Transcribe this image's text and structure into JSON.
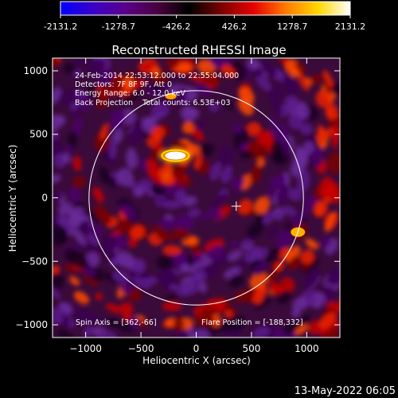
{
  "footer": {
    "date_stamp": "13-May-2022 06:05"
  },
  "colorbar": {
    "tick_labels": [
      "-2131.2",
      "-1278.7",
      "-426.2",
      "426.2",
      "1278.7",
      "2131.2"
    ],
    "min": -2131.2,
    "max": 2131.2,
    "colors": [
      "#0000ff",
      "#3a00c8",
      "#5a008a",
      "#4a0040",
      "#000000",
      "#7a0000",
      "#e60000",
      "#ff7a00",
      "#ffd700",
      "#ffffff"
    ]
  },
  "chart_data": {
    "type": "heatmap",
    "title": "Reconstructed RHESSI Image",
    "xlabel": "Heliocentric X (arcsec)",
    "ylabel": "Heliocentric Y (arcsec)",
    "xlim": [
      -1300,
      1300
    ],
    "ylim": [
      -1100,
      1100
    ],
    "x_ticks": [
      -1000,
      -500,
      0,
      500,
      1000
    ],
    "y_ticks": [
      -1000,
      -500,
      0,
      500,
      1000
    ],
    "x_tick_labels": [
      "−1000",
      "−500",
      "0",
      "500",
      "1000"
    ],
    "y_tick_labels": [
      "−1000",
      "−500",
      "0",
      "500",
      "1000"
    ],
    "annotations": [
      "24-Feb-2014 22:53:12.000 to 22:55:04.000",
      "Detectors: 7F 8F 9F, Att 0",
      "Energy Range: 6.0 - 12.0 keV",
      "Back Projection    Total counts: 6.53E+03"
    ],
    "spin_axis_label": "Spin Axis = [362,-66]",
    "flare_position_label": "Flare Position = [-188,332]",
    "solar_limb_radius": 970,
    "marker": {
      "x": 362,
      "y": -66
    },
    "bright_source": {
      "x": -188,
      "y": 332
    }
  }
}
